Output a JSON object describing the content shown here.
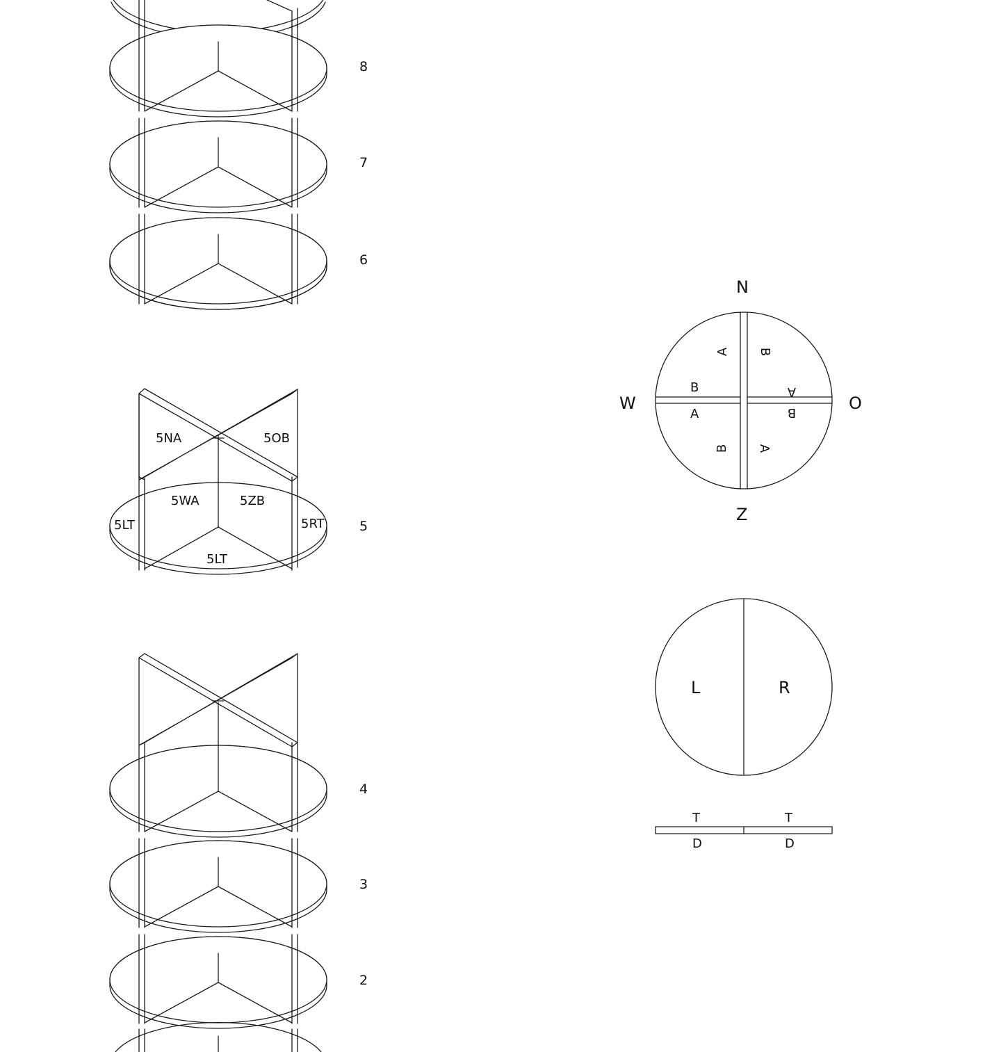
{
  "levels": [
    "8",
    "7",
    "6",
    "5",
    "4",
    "3",
    "2"
  ],
  "level5_parts": {
    "north_a": "5NA",
    "east_b": "5OB",
    "west_a": "5WA",
    "south_b": "5ZB",
    "left_edge": "5LT",
    "right_edge": "5RT",
    "bottom": "5LT"
  },
  "compass": {
    "north": "N",
    "south": "Z",
    "west": "W",
    "east": "O",
    "face_a": "A",
    "face_b": "B"
  },
  "top_plan": {
    "left": "L",
    "right": "R"
  },
  "edge_view": {
    "top": "T",
    "bottom": "D"
  },
  "colors": {
    "line": "#1a1a1a",
    "background": "#ffffff"
  }
}
